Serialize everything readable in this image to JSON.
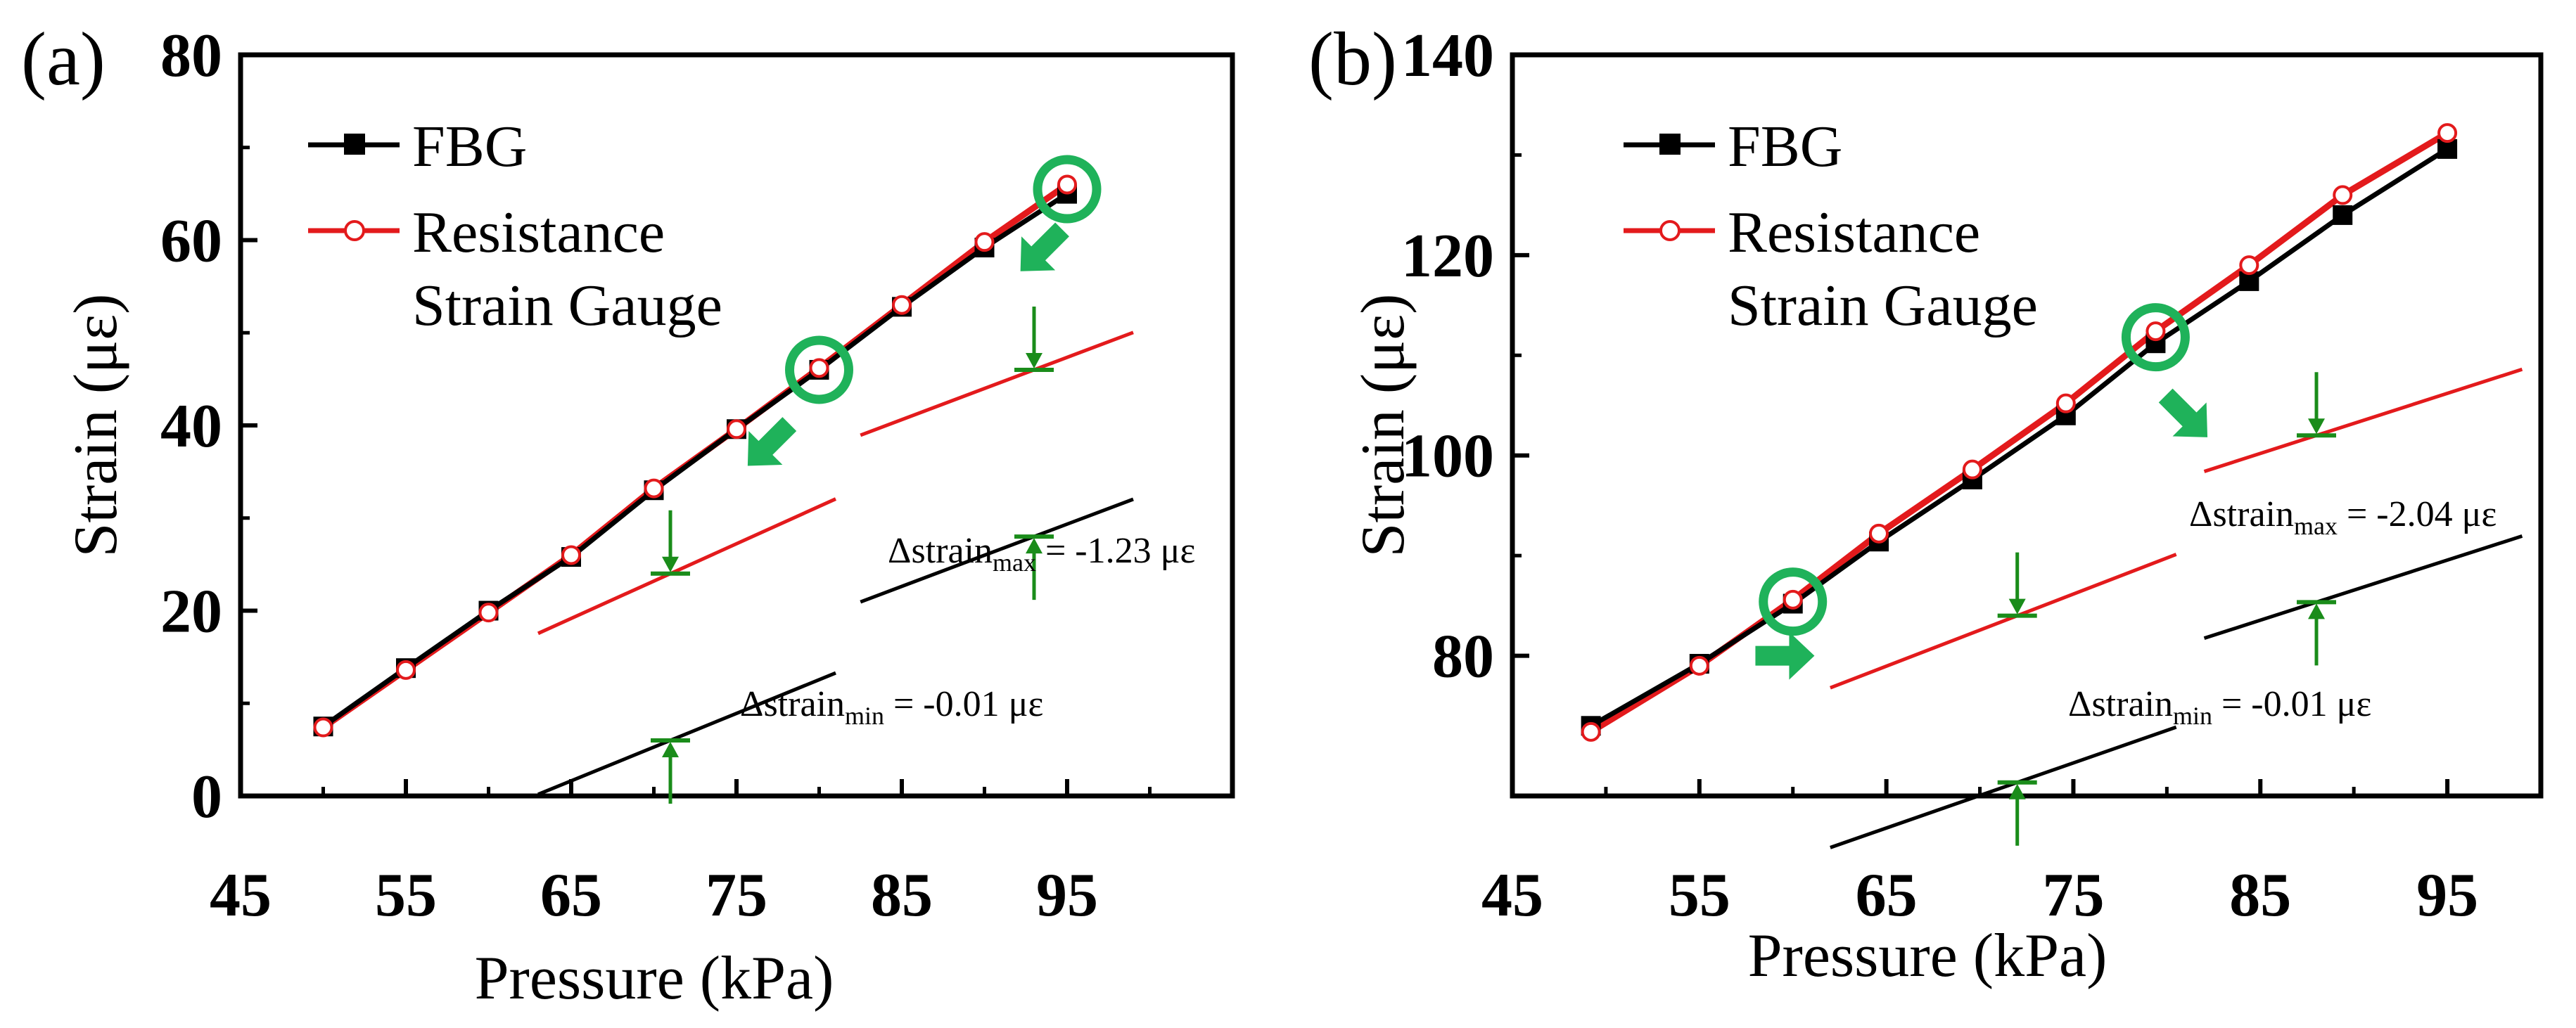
{
  "chart_data": [
    {
      "panel": "(a)",
      "type": "line",
      "xlabel": "Pressure (kPa)",
      "ylabel": "Strain (με)",
      "xlim": [
        45,
        105
      ],
      "ylim": [
        0,
        80
      ],
      "xticks": [
        45,
        55,
        65,
        75,
        85,
        95
      ],
      "yticks": [
        0,
        20,
        40,
        60,
        80
      ],
      "legend_position": "top-left",
      "series": [
        {
          "name": "FBG",
          "color": "#000000",
          "marker": "filled-square",
          "x": [
            50,
            55,
            60,
            65,
            70,
            75,
            80,
            85,
            90,
            95
          ],
          "y": [
            7.5,
            13.8,
            20.0,
            25.8,
            33.0,
            39.6,
            46.0,
            52.8,
            59.2,
            65.0
          ]
        },
        {
          "name": "Resistance Strain Gauge",
          "legend_lines": [
            "Resistance",
            "Strain Gauge"
          ],
          "color": "#e31a1c",
          "marker": "open-circle",
          "x": [
            50,
            55,
            60,
            65,
            70,
            75,
            80,
            85,
            90,
            95
          ],
          "y": [
            7.4,
            13.6,
            19.8,
            26.0,
            33.2,
            39.6,
            46.2,
            53.0,
            59.8,
            66.0
          ]
        }
      ],
      "highlighted_points": [
        {
          "x": 80,
          "y": 46.0
        },
        {
          "x": 95,
          "y": 65.5
        }
      ],
      "annotations": [
        {
          "main": "Δstrain",
          "sub": "max",
          "value": " = -1.23 με"
        },
        {
          "main": "Δstrain",
          "sub": "min",
          "value": " = -0.01 με"
        }
      ],
      "colors": {
        "fbg": "#000000",
        "rsg": "#e31a1c",
        "highlight": "#1fb25a",
        "arrow": "#1a8c1a"
      }
    },
    {
      "panel": "(b)",
      "type": "line",
      "xlabel": "Pressure (kPa)",
      "ylabel": "Strain (με)",
      "xlim": [
        45,
        100
      ],
      "ylim": [
        66,
        140
      ],
      "xticks": [
        45,
        55,
        65,
        75,
        85,
        95
      ],
      "yticks": [
        80,
        100,
        120,
        140
      ],
      "legend_position": "top-left",
      "series": [
        {
          "name": "FBG",
          "color": "#000000",
          "marker": "filled-square",
          "x": [
            49.2,
            55,
            60,
            64.6,
            69.6,
            74.6,
            79.4,
            84.4,
            89.4,
            95
          ],
          "y": [
            73.0,
            79.2,
            85.2,
            91.4,
            97.6,
            104.0,
            111.2,
            117.4,
            124.0,
            130.6
          ]
        },
        {
          "name": "Resistance Strain Gauge",
          "legend_lines": [
            "Resistance",
            "Strain Gauge"
          ],
          "color": "#e31a1c",
          "marker": "open-circle",
          "x": [
            49.2,
            55,
            60,
            64.6,
            69.6,
            74.6,
            79.4,
            84.4,
            89.4,
            95
          ],
          "y": [
            72.4,
            79.0,
            85.6,
            92.2,
            98.6,
            105.2,
            112.4,
            119.0,
            126.0,
            132.2
          ]
        }
      ],
      "highlighted_points": [
        {
          "x": 60,
          "y": 85.4
        },
        {
          "x": 79.4,
          "y": 111.8
        }
      ],
      "annotations": [
        {
          "main": "Δstrain",
          "sub": "max",
          "value": " = -2.04 με"
        },
        {
          "main": "Δstrain",
          "sub": "min",
          "value": " = -0.01 με"
        }
      ],
      "colors": {
        "fbg": "#000000",
        "rsg": "#e31a1c",
        "highlight": "#1fb25a",
        "arrow": "#1a8c1a"
      }
    }
  ]
}
